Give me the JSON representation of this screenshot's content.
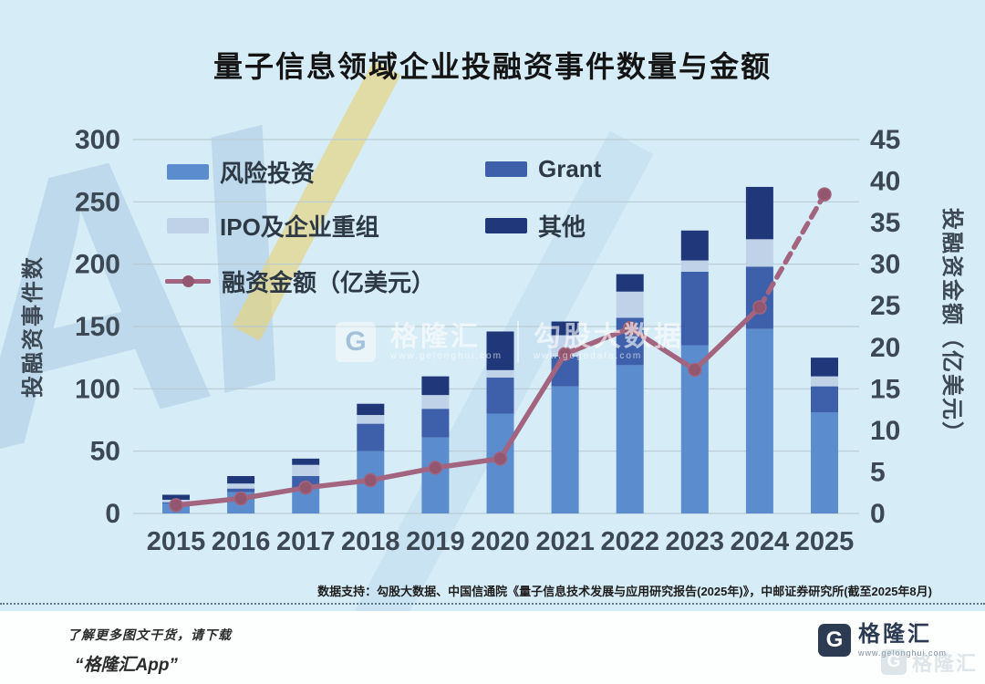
{
  "title": "量子信息领域企业投融资事件数量与金额",
  "chart_data": {
    "type": "bar",
    "subtype": "stacked-bar-with-line",
    "categories": [
      "2015",
      "2016",
      "2017",
      "2018",
      "2019",
      "2020",
      "2021",
      "2022",
      "2023",
      "2024",
      "2025"
    ],
    "series": [
      {
        "name": "风险投资",
        "color": "#5b8ccd",
        "values": [
          8,
          17,
          20,
          50,
          61,
          80,
          102,
          119,
          135,
          148,
          81
        ]
      },
      {
        "name": "Grant",
        "color": "#3e60aa",
        "values": [
          1,
          3,
          10,
          22,
          23,
          29,
          24,
          38,
          59,
          50,
          21
        ]
      },
      {
        "name": "IPO及企业重组",
        "color": "#c0d2e8",
        "values": [
          2,
          4,
          9,
          7,
          11,
          6,
          17,
          21,
          9,
          22,
          8
        ]
      },
      {
        "name": "其他",
        "color": "#20387a",
        "values": [
          4,
          6,
          5,
          9,
          15,
          31,
          11,
          14,
          24,
          42,
          15
        ]
      }
    ],
    "bar_totals": [
      15,
      30,
      44,
      88,
      110,
      146,
      154,
      192,
      227,
      262,
      125
    ],
    "line_series": {
      "name": "融资金额（亿美元）",
      "color": "#a2647e",
      "marker_color": "#93566f",
      "values": [
        1,
        1.8,
        3.1,
        4,
        5.5,
        6.6,
        19.2,
        22.3,
        17.3,
        24.8,
        38.4
      ],
      "dashed_from_index": 9
    },
    "left_axis": {
      "label": "投融资事件数",
      "min": 0,
      "max": 300,
      "step": 50
    },
    "right_axis": {
      "label": "投融资金额（亿美元）",
      "min": 0,
      "max": 45,
      "step": 5
    },
    "grid": "horizontal",
    "legend_position": "top-left-inside",
    "colors": {
      "grid": "#b9cbd3",
      "tick_text": "#3c4854",
      "background": "#d6ecf6"
    }
  },
  "watermarks": {
    "bg_letters": "AI",
    "center": {
      "glyph": "G",
      "brand1": "格隆汇",
      "url1": "www.gelonghui.com",
      "brand2": "勾股大数据",
      "url2": "www.gogodata.com"
    }
  },
  "source_note": "数据支持：勾股大数据、中国信通院《量子信息技术发展与应用研究报告(2025年)》，中邮证券研究所(截至2025年8月)",
  "footer": {
    "promo_line1": "了解更多图文干货，请下载",
    "promo_line2": "“格隆汇App”",
    "logo_glyph": "G",
    "brand": "格隆汇",
    "brand_url": "www.gelonghui.com"
  }
}
